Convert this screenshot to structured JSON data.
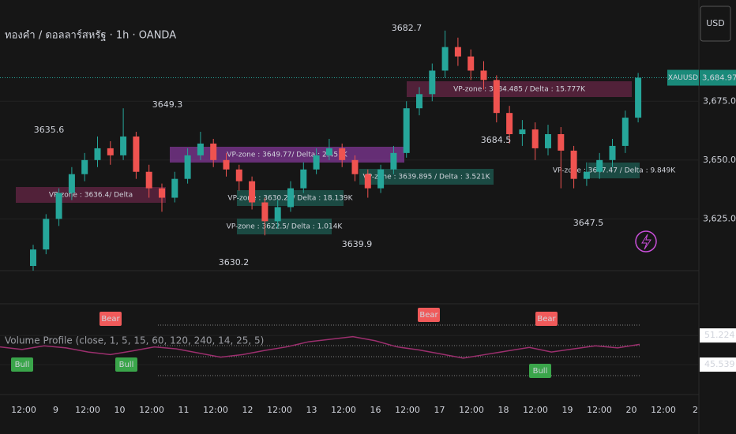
{
  "header": {
    "title": "ทองคำ / ดอลลาร์สหรัฐ · 1h · OANDA",
    "currency": "USD"
  },
  "chart_data": [
    {
      "type": "candlestick",
      "symbol": "XAUUSD",
      "open": [
        3605,
        3612,
        3625,
        3636,
        3644,
        3650,
        3655,
        3652,
        3660,
        3645,
        3638,
        3634,
        3642,
        3652,
        3657,
        3650,
        3646,
        3641,
        3632,
        3624,
        3630,
        3638,
        3646,
        3652,
        3655,
        3650,
        3644,
        3638,
        3646,
        3653,
        3672,
        3678,
        3688,
        3698,
        3694,
        3688,
        3684,
        3670,
        3661,
        3663,
        3655,
        3661,
        3654,
        3642,
        3645,
        3650,
        3656,
        3668
      ],
      "high": [
        3614,
        3627,
        3638,
        3647,
        3653,
        3660,
        3658,
        3672,
        3662,
        3648,
        3640,
        3645,
        3655,
        3662,
        3659,
        3653,
        3648,
        3643,
        3634,
        3633,
        3641,
        3649,
        3655,
        3659,
        3657,
        3652,
        3646,
        3648,
        3656,
        3675,
        3681,
        3691,
        3705,
        3702,
        3697,
        3692,
        3686,
        3673,
        3667,
        3666,
        3665,
        3664,
        3656,
        3649,
        3653,
        3659,
        3671,
        3687
      ],
      "low": [
        3603,
        3610,
        3622,
        3633,
        3641,
        3647,
        3648,
        3650,
        3642,
        3634,
        3628,
        3632,
        3640,
        3650,
        3647,
        3643,
        3637,
        3629,
        3618,
        3621,
        3628,
        3636,
        3644,
        3650,
        3647,
        3641,
        3634,
        3636,
        3644,
        3651,
        3669,
        3675,
        3685,
        3690,
        3684,
        3680,
        3666,
        3657,
        3656,
        3650,
        3652,
        3638,
        3638,
        3639,
        3642,
        3647,
        3653,
        3666
      ],
      "close": [
        3612,
        3625,
        3636,
        3644,
        3650,
        3655,
        3652,
        3660,
        3645,
        3638,
        3634,
        3642,
        3652,
        3657,
        3650,
        3646,
        3641,
        3632,
        3624,
        3630,
        3638,
        3646,
        3652,
        3655,
        3650,
        3644,
        3638,
        3646,
        3653,
        3672,
        3678,
        3688,
        3698,
        3694,
        3688,
        3684,
        3670,
        3661,
        3663,
        3655,
        3661,
        3654,
        3642,
        3645,
        3650,
        3656,
        3668,
        3684.975
      ],
      "up_color": "#26a69a",
      "down_color": "#ef5350",
      "ylim": [
        3603,
        3718
      ],
      "yticks": [
        {
          "value": 3625,
          "label": "3,625.000"
        },
        {
          "value": 3650,
          "label": "3,650.000"
        },
        {
          "value": 3675,
          "label": "3,675.000"
        }
      ],
      "last_price": {
        "value": 3684.975,
        "label": "3,684.975"
      },
      "annotations": [
        "3682.7",
        "3649.3",
        "3639.9",
        "3630.2",
        "3647.5",
        "3684.5",
        "3635.6"
      ],
      "zones": [
        "VP-zone : 3649.77/ Delta : 2.451K",
        "VP-zone : 3639.895 / Delta : 3.521K",
        "VP-zone : 3630.24/ Delta : 18.139K",
        "VP-zone : 3622.5/ Delta : 1.014K",
        "VP-zone : 3684.485 / Delta : 15.777K",
        "VP-zone : 3647.47 / Delta : 9.849K",
        "VP-zone : 3636.4/ Delta"
      ],
      "x_labels": [
        "12:00",
        "9",
        "12:00",
        "10",
        "12:00",
        "11",
        "12:00",
        "12",
        "12:00",
        "13",
        "12:00",
        "16",
        "12:00",
        "17",
        "12:00",
        "18",
        "12:00",
        "19",
        "12:00",
        "20",
        "12:00",
        "2"
      ]
    },
    {
      "type": "line",
      "name": "Volume Profile (close, 1, 5, 15, 60, 120, 240, 14, 25, 5)",
      "color": "#9c2f6e",
      "values": [
        49,
        48.5,
        49.2,
        48.8,
        48,
        47.5,
        48.2,
        49,
        48.6,
        47.8,
        47,
        47.5,
        48.3,
        49,
        50,
        50.5,
        51,
        50.2,
        49,
        48.4,
        47.6,
        46.8,
        47.5,
        48.2,
        48.9,
        48,
        48.6,
        49.2,
        48.8,
        49.5
      ],
      "ylim": [
        39.7,
        57.4
      ],
      "yticks": [
        45.539,
        51.224
      ],
      "signals": [
        "Bear",
        "Bear",
        "Bear",
        "Bull",
        "Bull",
        "Bull"
      ]
    }
  ]
}
